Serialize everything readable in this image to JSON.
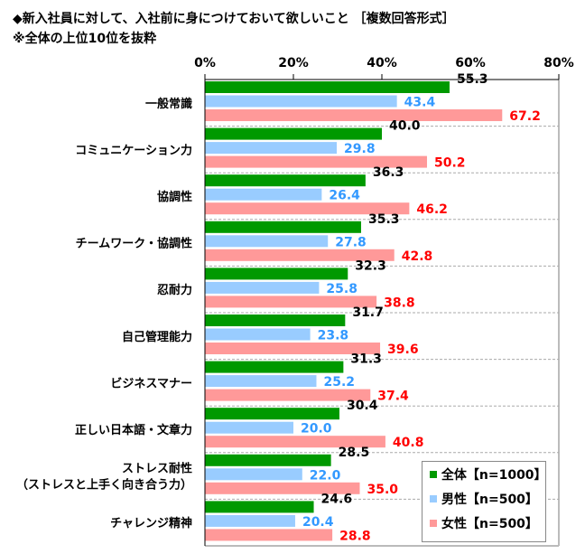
{
  "chart_data": {
    "type": "bar",
    "orientation": "horizontal",
    "title": "◆新入社員に対して、入社前に身につけておいて欲しいこと ［複数回答形式］",
    "subtitle": "※全体の上位10位を抜粋",
    "categories": [
      "一般常識",
      "コミュニケーション力",
      "協調性",
      "チームワーク・協調性",
      "忍耐力",
      "自己管理能力",
      "ビジネスマナー",
      "正しい日本語・文章力",
      "ストレス耐性\n（ストレスと上手く向き合う力）",
      "チャレンジ精神"
    ],
    "xlim": [
      0,
      80
    ],
    "ticks": [
      "0%",
      "20%",
      "40%",
      "60%",
      "80%"
    ],
    "tick_values": [
      0,
      20,
      40,
      60,
      80
    ],
    "legend_position": "bottom-right",
    "series": [
      {
        "name": "全体【n=1000】",
        "color": "#009900",
        "label_color": "#000000",
        "values": [
          55.3,
          40.0,
          36.3,
          35.3,
          32.3,
          31.7,
          31.3,
          30.4,
          28.5,
          24.6
        ]
      },
      {
        "name": "男性【n=500】",
        "color": "#99ccff",
        "label_color": "#3399ff",
        "values": [
          43.4,
          29.8,
          26.4,
          27.8,
          25.8,
          23.8,
          25.2,
          20.0,
          22.0,
          20.4
        ]
      },
      {
        "name": "女性【n=500】",
        "color": "#ff9999",
        "label_color": "#ff0000",
        "values": [
          67.2,
          50.2,
          46.2,
          42.8,
          38.8,
          39.6,
          37.4,
          40.8,
          35.0,
          28.8
        ]
      }
    ]
  }
}
